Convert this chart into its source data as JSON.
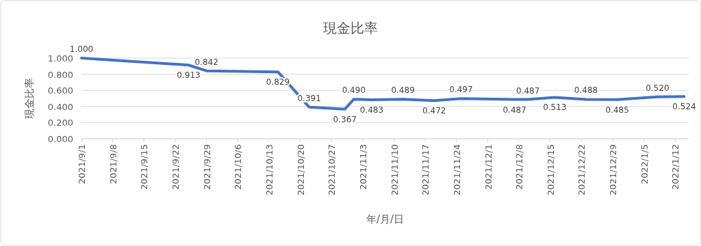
{
  "chart_data": {
    "type": "line",
    "title": "現金比率",
    "xlabel": "年/月/日",
    "ylabel": "現金比率",
    "x": [
      "2021-09-01",
      "2021-09-25",
      "2021-09-29",
      "2021-10-15",
      "2021-10-22",
      "2021-10-30",
      "2021-11-01",
      "2021-11-05",
      "2021-11-12",
      "2021-11-19",
      "2021-11-25",
      "2021-12-07",
      "2021-12-10",
      "2021-12-16",
      "2021-12-23",
      "2021-12-30",
      "2022-01-08",
      "2022-01-14"
    ],
    "series": [
      {
        "color": "#4472c4",
        "values": [
          1.0,
          0.913,
          0.842,
          0.829,
          0.391,
          0.367,
          0.49,
          0.483,
          0.489,
          0.472,
          0.497,
          0.487,
          0.487,
          0.513,
          0.488,
          0.485,
          0.52,
          0.524
        ],
        "value_labels": [
          "1.000",
          "0.913",
          "0.842",
          "0.829",
          "0.391",
          "0.367",
          "0.490",
          "0.483",
          "0.489",
          "0.472",
          "0.497",
          "0.487",
          "0.487",
          "0.513",
          "0.488",
          "0.485",
          "0.520",
          "0.524"
        ]
      }
    ],
    "xlim": [
      "2021-09-01",
      "2022-01-15"
    ],
    "xticks": [
      {
        "value": "2021-09-01",
        "label": "2021/9/1"
      },
      {
        "value": "2021-09-08",
        "label": "2021/9/8"
      },
      {
        "value": "2021-09-15",
        "label": "2021/9/15"
      },
      {
        "value": "2021-09-22",
        "label": "2021/9/22"
      },
      {
        "value": "2021-09-29",
        "label": "2021/9/29"
      },
      {
        "value": "2021-10-06",
        "label": "2021/10/6"
      },
      {
        "value": "2021-10-13",
        "label": "2021/10/13"
      },
      {
        "value": "2021-10-20",
        "label": "2021/10/20"
      },
      {
        "value": "2021-10-27",
        "label": "2021/10/27"
      },
      {
        "value": "2021-11-03",
        "label": "2021/11/3"
      },
      {
        "value": "2021-11-10",
        "label": "2021/11/10"
      },
      {
        "value": "2021-11-17",
        "label": "2021/11/17"
      },
      {
        "value": "2021-11-24",
        "label": "2021/11/24"
      },
      {
        "value": "2021-12-01",
        "label": "2021/12/1"
      },
      {
        "value": "2021-12-08",
        "label": "2021/12/8"
      },
      {
        "value": "2021-12-15",
        "label": "2021/12/15"
      },
      {
        "value": "2021-12-22",
        "label": "2021/12/22"
      },
      {
        "value": "2021-12-29",
        "label": "2021/12/29"
      },
      {
        "value": "2022-01-05",
        "label": "2022/1/5"
      },
      {
        "value": "2022-01-12",
        "label": "2022/1/12"
      }
    ],
    "ylim": [
      0,
      1
    ],
    "yticks": [
      {
        "value": 0,
        "label": "0.000"
      },
      {
        "value": 0.2,
        "label": "0.200"
      },
      {
        "value": 0.4,
        "label": "0.400"
      },
      {
        "value": 0.6,
        "label": "0.600"
      },
      {
        "value": 0.8,
        "label": "0.800"
      },
      {
        "value": 1,
        "label": "1.000"
      }
    ],
    "grid": "y",
    "marker": "none",
    "line_style": "solid"
  }
}
